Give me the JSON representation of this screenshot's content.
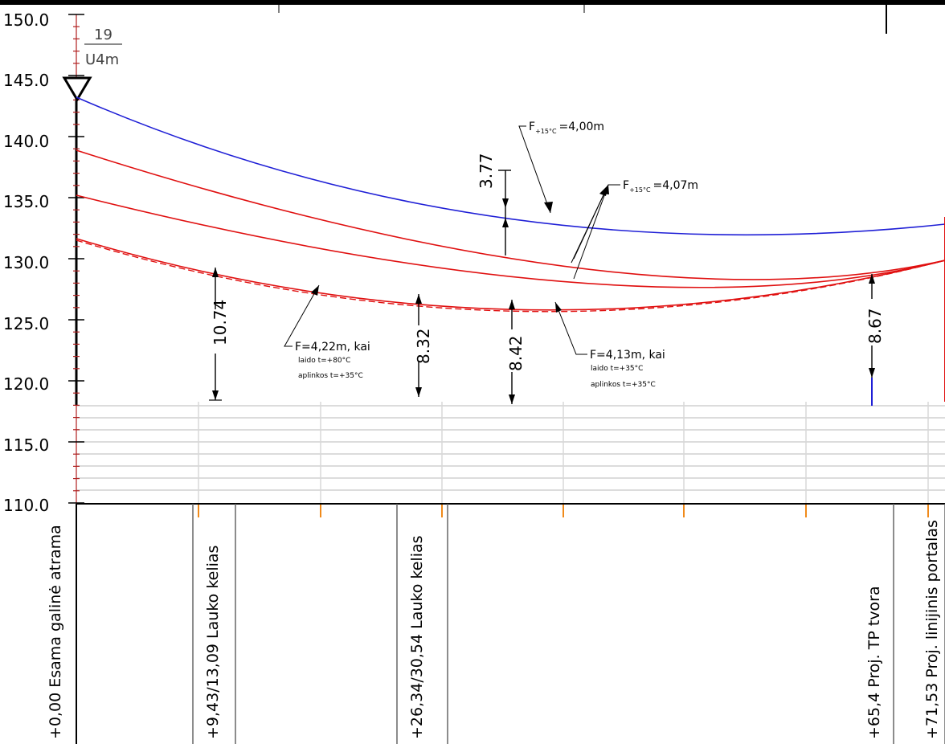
{
  "y_axis": {
    "labels": [
      "150.0",
      "145.0",
      "140.0",
      "135.0",
      "130.0",
      "125.0",
      "120.0",
      "115.0",
      "110.0"
    ]
  },
  "support_marker": {
    "number": "19",
    "type": "U4m"
  },
  "dimensions": [
    {
      "value": "3.77"
    },
    {
      "value": "10.74"
    },
    {
      "value": "8.32"
    },
    {
      "value": "8.42"
    },
    {
      "value": "8.67"
    }
  ],
  "sag_labels": {
    "blue": {
      "prefix": "F",
      "sub": "+15°C",
      "value": "=4,00m"
    },
    "red": {
      "prefix": "F",
      "sub": "+15°C",
      "value": "=4,07m"
    }
  },
  "notes": {
    "left": {
      "line1": "F=4,22m, kai",
      "line2": "laido t=+80°C",
      "line3": "aplinkos t=+35°C"
    },
    "right": {
      "line1": "F=4,13m, kai",
      "line2": "laido t=+35°C",
      "line3": "aplinkos t=+35°C"
    }
  },
  "stations": [
    "+0,00 Esama galinė atrama",
    "+9,43/13,09 Lauko kelias",
    "+26,34/30,54 Lauko kelias",
    "+65,4 Proj. TP tvora",
    "+71,53 Proj. linijinis portalas"
  ],
  "colors": {
    "blue_wire": "#1f1fd6",
    "red_wire": "#e01010",
    "tick_orange": "#f08a1a",
    "ruler_red": "#b02020"
  }
}
